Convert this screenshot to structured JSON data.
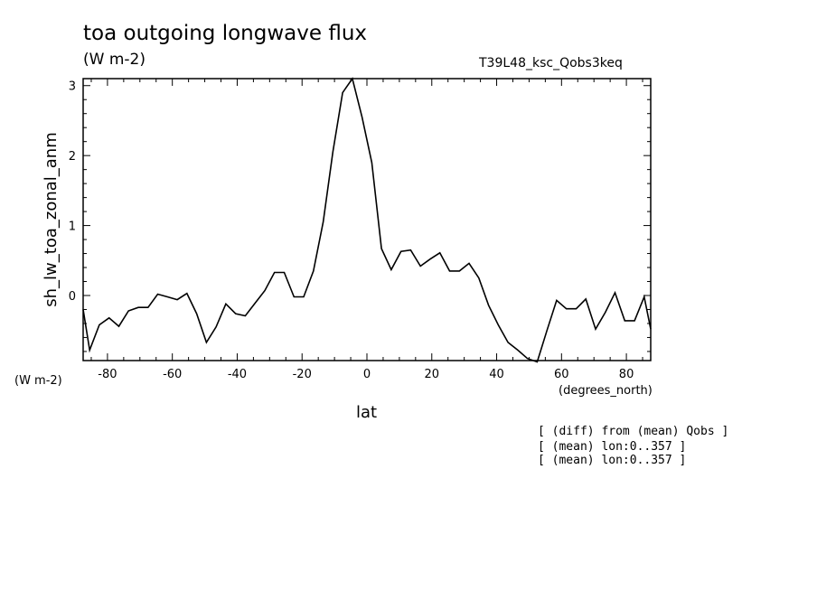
{
  "chart_data": {
    "type": "line",
    "title": "toa outgoing longwave flux",
    "units_label": "(W m-2)",
    "run_label": "T39L48_ksc_Qobs3keq",
    "ylabel": "sh_lw_toa_zonal_anm",
    "y_units": "(W m-2)",
    "xlabel": "lat",
    "x_units": "(degrees_north)",
    "xlim": [
      -87.5,
      87.5
    ],
    "ylim": [
      -0.93,
      3.1
    ],
    "x_ticks": [
      -80,
      -60,
      -40,
      -20,
      0,
      20,
      40,
      60,
      80
    ],
    "x_tick_labels": [
      "-80",
      "-60",
      "-40",
      "-20",
      "0",
      "20",
      "40",
      "60",
      "80"
    ],
    "y_ticks": [
      0,
      1,
      2,
      3
    ],
    "y_tick_labels": [
      "0",
      "1",
      "2",
      "3"
    ],
    "grid": false,
    "series": [
      {
        "x": [
          -87.5,
          -85.5,
          -82.5,
          -79.5,
          -76.5,
          -73.5,
          -70.5,
          -67.5,
          -64.5,
          -61.5,
          -58.5,
          -55.5,
          -52.5,
          -49.5,
          -46.5,
          -43.5,
          -40.5,
          -37.5,
          -34.5,
          -31.5,
          -28.5,
          -25.5,
          -22.5,
          -19.5,
          -16.5,
          -13.5,
          -10.5,
          -7.5,
          -4.5,
          -1.5,
          1.5,
          4.5,
          7.5,
          10.5,
          13.5,
          16.5,
          19.5,
          22.5,
          25.5,
          28.5,
          31.5,
          34.5,
          37.5,
          40.5,
          43.5,
          46.5,
          49.5,
          52.5,
          55.5,
          58.5,
          61.5,
          64.5,
          67.5,
          70.5,
          73.5,
          76.5,
          79.5,
          82.5,
          85.5,
          87.5
        ],
        "y": [
          -0.2,
          -0.78,
          -0.42,
          -0.32,
          -0.44,
          -0.22,
          -0.17,
          -0.17,
          0.02,
          -0.02,
          -0.06,
          0.03,
          -0.26,
          -0.67,
          -0.45,
          -0.12,
          -0.26,
          -0.29,
          -0.11,
          0.07,
          0.33,
          0.33,
          -0.02,
          -0.02,
          0.35,
          1.05,
          2.05,
          2.9,
          3.1,
          2.55,
          1.9,
          0.67,
          0.37,
          0.63,
          0.65,
          0.42,
          0.52,
          0.61,
          0.35,
          0.35,
          0.46,
          0.25,
          -0.14,
          -0.42,
          -0.67,
          -0.78,
          -0.9,
          -0.95,
          -0.5,
          -0.07,
          -0.19,
          -0.19,
          -0.05,
          -0.48,
          -0.24,
          0.04,
          -0.36,
          -0.36,
          -0.02,
          -0.48
        ]
      }
    ]
  },
  "notes": [
    "[ (diff) from (mean) Qobs ]",
    "[ (mean) lon:0..357 ]",
    "[ (mean) lon:0..357 ]"
  ]
}
